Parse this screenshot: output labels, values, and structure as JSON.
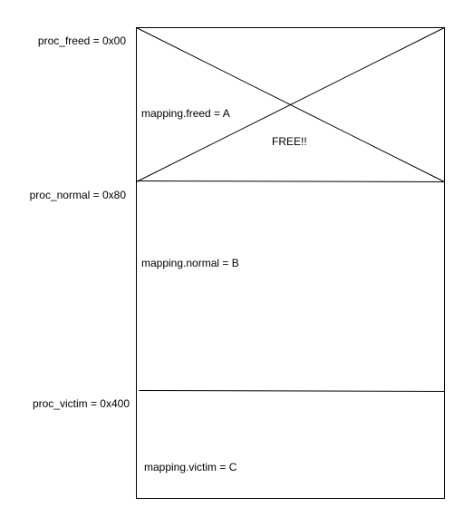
{
  "diagram": {
    "addresses": {
      "proc_freed": "proc_freed = 0x00",
      "proc_normal": "proc_normal = 0x80",
      "proc_victim": "proc_victim = 0x400"
    },
    "mappings": {
      "freed": "mapping.freed = A",
      "normal": "mapping.normal = B",
      "victim": "mapping.victim = C"
    },
    "freed_marker": "FREE!!",
    "colors": {
      "stroke": "#000000",
      "background": "#ffffff",
      "text": "#000000"
    }
  }
}
